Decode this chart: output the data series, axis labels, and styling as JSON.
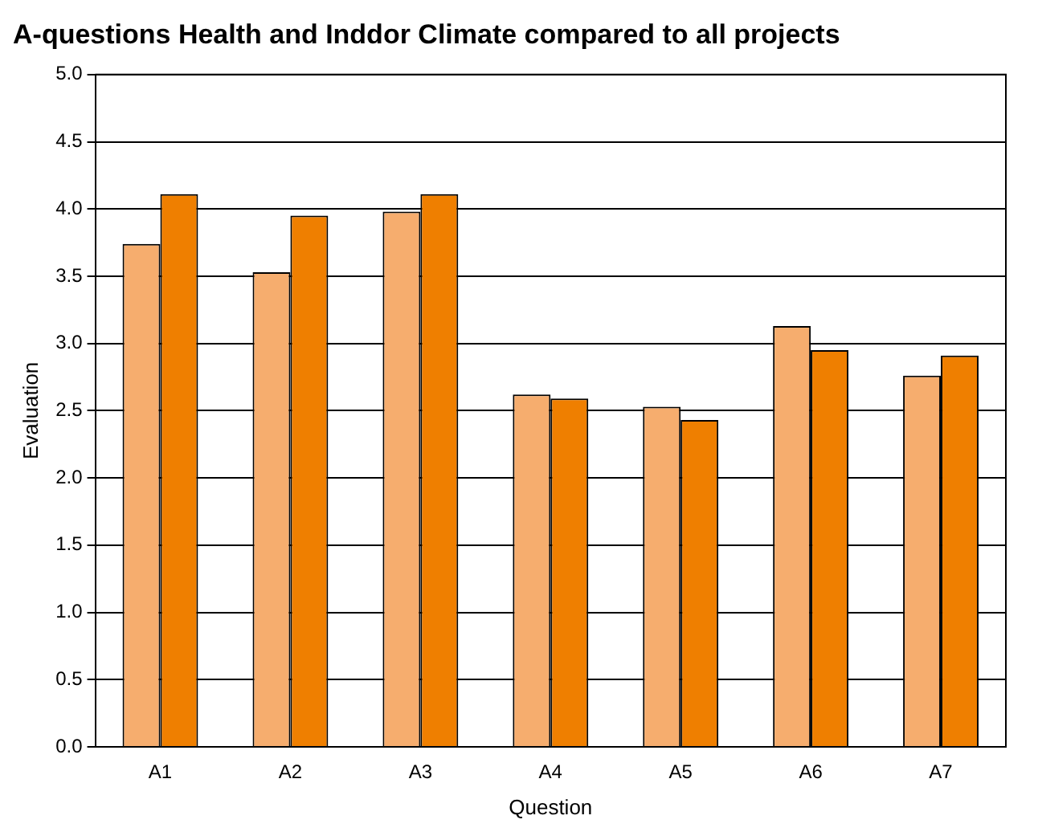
{
  "chart_data": {
    "type": "bar",
    "title": "A-questions Health and Inddor Climate compared to all projects",
    "xlabel": "Question",
    "ylabel": "Evaluation",
    "categories": [
      "A1",
      "A2",
      "A3",
      "A4",
      "A5",
      "A6",
      "A7"
    ],
    "series": [
      {
        "color": "#f6ad6e",
        "values": [
          3.74,
          3.53,
          3.98,
          2.62,
          2.53,
          3.13,
          2.76
        ]
      },
      {
        "color": "#ef7f00",
        "values": [
          4.11,
          3.95,
          4.11,
          2.59,
          2.43,
          2.95,
          2.91
        ]
      }
    ],
    "ylim": [
      0,
      5
    ],
    "yticks": [
      {
        "value": 0,
        "label": "0.0"
      },
      {
        "value": 0.5,
        "label": "0.5"
      },
      {
        "value": 1,
        "label": "1.0"
      },
      {
        "value": 1.5,
        "label": "1.5"
      },
      {
        "value": 2,
        "label": "2.0"
      },
      {
        "value": 2.5,
        "label": "2.5"
      },
      {
        "value": 3,
        "label": "3.0"
      },
      {
        "value": 3.5,
        "label": "3.5"
      },
      {
        "value": 4,
        "label": "4.0"
      },
      {
        "value": 4.5,
        "label": "4.5"
      },
      {
        "value": 5,
        "label": "5.0"
      }
    ],
    "grid": "y",
    "legend": false
  }
}
